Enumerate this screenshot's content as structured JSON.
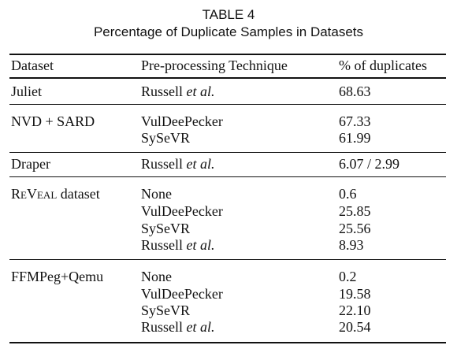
{
  "table": {
    "caption_number": "TABLE 4",
    "caption_title": "Percentage of Duplicate Samples in Datasets",
    "headers": [
      "Dataset",
      "Pre-processing Technique",
      "% of duplicates"
    ],
    "groups": [
      {
        "dataset": "Juliet",
        "rows": [
          {
            "technique_main": "Russell",
            "technique_suffix": " et al.",
            "value": "68.63"
          }
        ]
      },
      {
        "dataset": "NVD + SARD",
        "rows": [
          {
            "technique_main": "VulDeePecker",
            "technique_suffix": "",
            "value": "67.33"
          },
          {
            "technique_main": "SySeVR",
            "technique_suffix": "",
            "value": "61.99"
          }
        ]
      },
      {
        "dataset": "Draper",
        "rows": [
          {
            "technique_main": "Russell",
            "technique_suffix": " et al.",
            "value": "6.07 / 2.99"
          }
        ]
      },
      {
        "dataset": "ReVeal dataset",
        "rows": [
          {
            "technique_main": "None",
            "technique_suffix": "",
            "value": "0.6"
          },
          {
            "technique_main": "VulDeePecker",
            "technique_suffix": "",
            "value": "25.85"
          },
          {
            "technique_main": "SySeVR",
            "technique_suffix": "",
            "value": "25.56"
          },
          {
            "technique_main": "Russell",
            "technique_suffix": " et al.",
            "value": "8.93"
          }
        ]
      },
      {
        "dataset": "FFMPeg+Qemu",
        "rows": [
          {
            "technique_main": "None",
            "technique_suffix": "",
            "value": "0.2"
          },
          {
            "technique_main": "VulDeePecker",
            "technique_suffix": "",
            "value": "19.58"
          },
          {
            "technique_main": "SySeVR",
            "technique_suffix": "",
            "value": "22.10"
          },
          {
            "technique_main": "Russell",
            "technique_suffix": " et al.",
            "value": "20.54"
          }
        ]
      }
    ]
  }
}
